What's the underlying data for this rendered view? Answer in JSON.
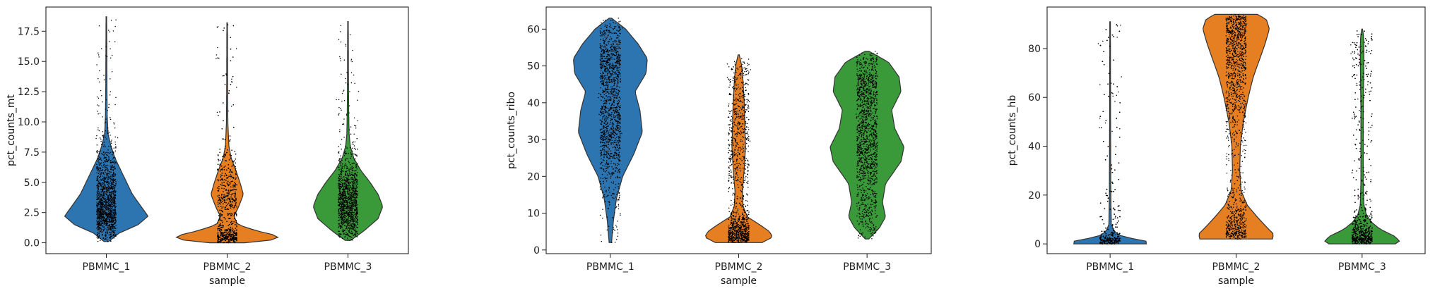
{
  "figure": {
    "type": "violin-with-strip",
    "xlabel": "sample",
    "categories": [
      "PBMMC_1",
      "PBMMC_2",
      "PBMMC_3"
    ],
    "colors": {
      "PBMMC_1": "#2d75b0",
      "PBMMC_2": "#e67e22",
      "PBMMC_3": "#3a9a3a",
      "outline": "#333333",
      "dots": "#000000",
      "axes": "#222222"
    }
  },
  "chart_data": [
    {
      "type": "violin",
      "ylabel": "pct_counts_mt",
      "xlabel": "sample",
      "categories": [
        "PBMMC_1",
        "PBMMC_2",
        "PBMMC_3"
      ],
      "ylim": [
        -0.9,
        19.5
      ],
      "yticks": [
        0.0,
        2.5,
        5.0,
        7.5,
        10.0,
        12.5,
        15.0,
        17.5
      ],
      "ytick_labels": [
        "0.0",
        "2.5",
        "5.0",
        "7.5",
        "10.0",
        "12.5",
        "15.0",
        "17.5"
      ],
      "series": [
        {
          "category": "PBMMC_1",
          "min": 0.1,
          "max": 18.7,
          "density": [
            [
              0.1,
              0.04
            ],
            [
              0.8,
              0.22
            ],
            [
              1.5,
              0.55
            ],
            [
              2.2,
              0.72
            ],
            [
              3.0,
              0.6
            ],
            [
              4.0,
              0.45
            ],
            [
              5.0,
              0.35
            ],
            [
              6.0,
              0.25
            ],
            [
              7.0,
              0.15
            ],
            [
              8.0,
              0.08
            ],
            [
              9.0,
              0.03
            ],
            [
              10.5,
              0.015
            ],
            [
              13.0,
              0.01
            ],
            [
              18.7,
              0.005
            ]
          ]
        },
        {
          "category": "PBMMC_2",
          "min": 0.0,
          "max": 18.2,
          "density": [
            [
              0.0,
              0.3
            ],
            [
              0.3,
              0.9
            ],
            [
              0.6,
              0.85
            ],
            [
              1.0,
              0.5
            ],
            [
              1.5,
              0.18
            ],
            [
              2.2,
              0.12
            ],
            [
              3.0,
              0.2
            ],
            [
              4.0,
              0.28
            ],
            [
              5.0,
              0.22
            ],
            [
              6.0,
              0.15
            ],
            [
              7.0,
              0.07
            ],
            [
              8.0,
              0.03
            ],
            [
              10.0,
              0.012
            ],
            [
              13.0,
              0.008
            ],
            [
              18.2,
              0.005
            ]
          ]
        },
        {
          "category": "PBMMC_3",
          "min": 0.2,
          "max": 18.3,
          "density": [
            [
              0.2,
              0.05
            ],
            [
              1.0,
              0.28
            ],
            [
              2.0,
              0.52
            ],
            [
              3.0,
              0.6
            ],
            [
              4.0,
              0.52
            ],
            [
              5.0,
              0.38
            ],
            [
              6.0,
              0.22
            ],
            [
              7.0,
              0.1
            ],
            [
              8.0,
              0.04
            ],
            [
              9.0,
              0.02
            ],
            [
              11.0,
              0.012
            ],
            [
              14.0,
              0.008
            ],
            [
              18.3,
              0.005
            ]
          ]
        }
      ]
    },
    {
      "type": "violin",
      "ylabel": "pct_counts_ribo",
      "xlabel": "sample",
      "categories": [
        "PBMMC_1",
        "PBMMC_2",
        "PBMMC_3"
      ],
      "ylim": [
        -1,
        66
      ],
      "yticks": [
        0,
        10,
        20,
        30,
        40,
        50,
        60
      ],
      "ytick_labels": [
        "0",
        "10",
        "20",
        "30",
        "40",
        "50",
        "60"
      ],
      "series": [
        {
          "category": "PBMMC_1",
          "min": 2,
          "max": 63,
          "density": [
            [
              2,
              0.02
            ],
            [
              8,
              0.05
            ],
            [
              14,
              0.1
            ],
            [
              20,
              0.2
            ],
            [
              26,
              0.38
            ],
            [
              32,
              0.52
            ],
            [
              38,
              0.48
            ],
            [
              43,
              0.4
            ],
            [
              48,
              0.58
            ],
            [
              52,
              0.6
            ],
            [
              56,
              0.45
            ],
            [
              60,
              0.25
            ],
            [
              63,
              0.02
            ]
          ]
        },
        {
          "category": "PBMMC_2",
          "min": 2,
          "max": 53,
          "density": [
            [
              2,
              0.38
            ],
            [
              3.5,
              0.55
            ],
            [
              5,
              0.5
            ],
            [
              7,
              0.33
            ],
            [
              9,
              0.14
            ],
            [
              12,
              0.07
            ],
            [
              16,
              0.06
            ],
            [
              22,
              0.09
            ],
            [
              28,
              0.11
            ],
            [
              34,
              0.1
            ],
            [
              40,
              0.09
            ],
            [
              46,
              0.07
            ],
            [
              50,
              0.05
            ],
            [
              53,
              0.01
            ]
          ]
        },
        {
          "category": "PBMMC_3",
          "min": 3,
          "max": 54,
          "density": [
            [
              3,
              0.03
            ],
            [
              6,
              0.2
            ],
            [
              9,
              0.3
            ],
            [
              13,
              0.25
            ],
            [
              18,
              0.3
            ],
            [
              24,
              0.55
            ],
            [
              28,
              0.6
            ],
            [
              33,
              0.45
            ],
            [
              38,
              0.4
            ],
            [
              43,
              0.55
            ],
            [
              47,
              0.52
            ],
            [
              51,
              0.35
            ],
            [
              54,
              0.03
            ]
          ]
        }
      ]
    },
    {
      "type": "violin",
      "ylabel": "pct_counts_hb",
      "xlabel": "sample",
      "categories": [
        "PBMMC_1",
        "PBMMC_2",
        "PBMMC_3"
      ],
      "ylim": [
        -4,
        97
      ],
      "yticks": [
        0,
        20,
        40,
        60,
        80
      ],
      "ytick_labels": [
        "0",
        "20",
        "40",
        "60",
        "80"
      ],
      "series": [
        {
          "category": "PBMMC_1",
          "min": 0,
          "max": 91,
          "density": [
            [
              0,
              0.6
            ],
            [
              1,
              0.62
            ],
            [
              2,
              0.42
            ],
            [
              3,
              0.2
            ],
            [
              5,
              0.07
            ],
            [
              8,
              0.02
            ],
            [
              20,
              0.012
            ],
            [
              50,
              0.008
            ],
            [
              91,
              0.005
            ]
          ]
        },
        {
          "category": "PBMMC_2",
          "min": 2,
          "max": 94,
          "density": [
            [
              2,
              0.6
            ],
            [
              4,
              0.62
            ],
            [
              7,
              0.5
            ],
            [
              11,
              0.35
            ],
            [
              16,
              0.18
            ],
            [
              22,
              0.08
            ],
            [
              30,
              0.06
            ],
            [
              40,
              0.07
            ],
            [
              50,
              0.12
            ],
            [
              60,
              0.2
            ],
            [
              68,
              0.28
            ],
            [
              75,
              0.38
            ],
            [
              82,
              0.48
            ],
            [
              88,
              0.55
            ],
            [
              92,
              0.5
            ],
            [
              94,
              0.35
            ]
          ]
        },
        {
          "category": "PBMMC_3",
          "min": 0,
          "max": 88,
          "density": [
            [
              0,
              0.55
            ],
            [
              1,
              0.62
            ],
            [
              3,
              0.55
            ],
            [
              6,
              0.3
            ],
            [
              9,
              0.15
            ],
            [
              12,
              0.07
            ],
            [
              16,
              0.03
            ],
            [
              25,
              0.02
            ],
            [
              40,
              0.02
            ],
            [
              55,
              0.02
            ],
            [
              65,
              0.025
            ],
            [
              75,
              0.03
            ],
            [
              82,
              0.03
            ],
            [
              86,
              0.02
            ],
            [
              88,
              0.005
            ]
          ]
        }
      ]
    }
  ]
}
